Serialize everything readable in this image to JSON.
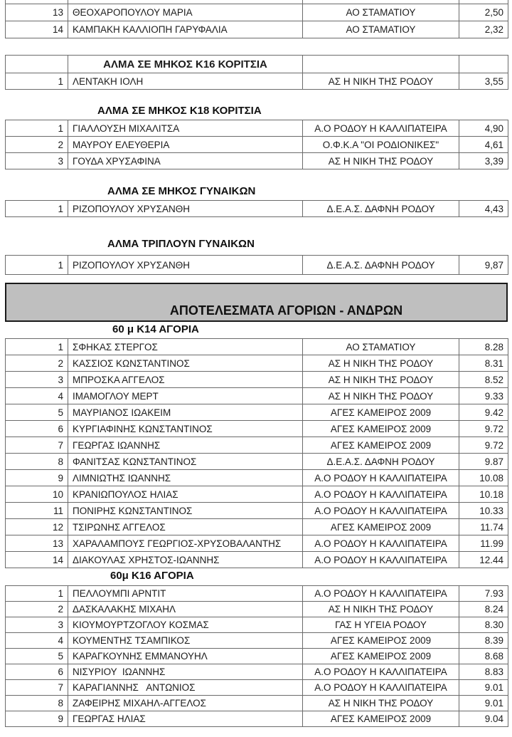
{
  "document": {
    "banner_title": "ΑΠΟΤΕΛΕΣΜΑΤΑ ΑΓΟΡΙΩΝ - ΑΝΔΡΩΝ"
  },
  "colors": {
    "banner_bg": "#bfbfbf",
    "table_border": "#6b6b6b",
    "text": "#1c1c1c"
  },
  "sections": {
    "girls_partial": {
      "rows": [
        {
          "rank": "13",
          "name": "ΘΕΟΧΑΡΟΠΟΥΛΟΥ ΜΑΡΙΑ",
          "club": "ΑΟ ΣΤΑΜΑΤΙΟΥ",
          "result": "2,50"
        },
        {
          "rank": "14",
          "name": "ΚΑΜΠΑΚΗ ΚΑΛΛΙΟΠΗ ΓΑΡΥΦΑΛΙΑ",
          "club": "ΑΟ ΣΤΑΜΑΤΙΟΥ",
          "result": "2,32"
        }
      ]
    },
    "k16_girls_long_jump": {
      "title": "ΑΛΜΑ ΣΕ ΜΗΚΟΣ Κ16 ΚΟΡΙΤΣΙΑ",
      "rows": [
        {
          "rank": "1",
          "name": "ΛΕΝΤΑΚΗ ΙΟΛΗ",
          "club": "ΑΣ Η ΝΙΚΗ ΤΗΣ ΡΟΔΟΥ",
          "result": "3,55"
        }
      ]
    },
    "k18_girls_long_jump": {
      "title": "ΑΛΜΑ ΣΕ ΜΗΚΟΣ Κ18 ΚΟΡΙΤΣΙΑ",
      "rows": [
        {
          "rank": "1",
          "name": "ΓΙΑΛΛΟΥΣΗ ΜΙΧΑΛΙΤΣΑ",
          "club": "Α.Ο ΡΟΔΟΥ Η ΚΑΛΛΙΠΑΤΕΙΡΑ",
          "result": "4,90"
        },
        {
          "rank": "2",
          "name": "ΜΑΥΡΟΥ ΕΛΕΥΘΕΡΙΑ",
          "club": "Ο.Φ.Κ.Α \"ΟΙ ΡΟΔΙΟΝΙΚΕΣ\"",
          "result": "4,61"
        },
        {
          "rank": "3",
          "name": "ΓΟΥΔΑ ΧΡΥΣΑΦΙΝΑ",
          "club": "ΑΣ Η ΝΙΚΗ ΤΗΣ ΡΟΔΟΥ",
          "result": "3,39"
        }
      ]
    },
    "women_long_jump": {
      "title": "ΑΛΜΑ ΣΕ ΜΗΚΟΣ ΓΥΝΑΙΚΩΝ",
      "rows": [
        {
          "rank": "1",
          "name": "ΡΙΖΟΠΟΥΛΟΥ ΧΡΥΣΑΝΘΗ",
          "club": "Δ.Ε.Α.Σ. ΔΑΦΝΗ ΡΟΔΟΥ",
          "result": "4,43"
        }
      ]
    },
    "women_triple_jump": {
      "title": "ΑΛΜΑ ΤΡΙΠΛΟΥΝ ΓΥΝΑΙΚΩΝ",
      "rows": [
        {
          "rank": "1",
          "name": "ΡΙΖΟΠΟΥΛΟΥ ΧΡΥΣΑΝΘΗ",
          "club": "Δ.Ε.Α.Σ. ΔΑΦΝΗ ΡΟΔΟΥ",
          "result": "9,87"
        }
      ]
    },
    "k14_boys_60m": {
      "title": "60 μ Κ14 ΑΓΟΡΙΑ",
      "rows": [
        {
          "rank": "1",
          "name": "ΣΦΗΚΑΣ ΣΤΕΡΓΟΣ",
          "club": "ΑΟ ΣΤΑΜΑΤΙΟΥ",
          "result": "8.28"
        },
        {
          "rank": "2",
          "name": "ΚΑΣΣΙΟΣ ΚΩΝΣΤΑΝΤΙΝΟΣ",
          "club": "ΑΣ Η ΝΙΚΗ ΤΗΣ ΡΟΔΟΥ",
          "result": "8.31"
        },
        {
          "rank": "3",
          "name": "ΜΠΡΟΣΚΑ ΑΓΓΕΛΟΣ",
          "club": "ΑΣ Η ΝΙΚΗ ΤΗΣ ΡΟΔΟΥ",
          "result": "8.52"
        },
        {
          "rank": "4",
          "name": "ΙΜΑΜΟΓΛΟΥ ΜΕΡΤ",
          "club": "ΑΣ Η ΝΙΚΗ ΤΗΣ ΡΟΔΟΥ",
          "result": "9.33"
        },
        {
          "rank": "5",
          "name": "ΜΑΥΡΙΑΝΟΣ ΙΩΑΚΕΙΜ",
          "club": "ΑΓΕΣ ΚΑΜΕΙΡΟΣ 2009",
          "result": "9.42"
        },
        {
          "rank": "6",
          "name": "ΚΥΡΓΙΑΦΙΝΗΣ ΚΩΝΣΤΑΝΤΙΝΟΣ",
          "club": "ΑΓΕΣ ΚΑΜΕΙΡΟΣ 2009",
          "result": "9.72"
        },
        {
          "rank": "7",
          "name": "ΓΕΩΡΓΑΣ ΙΩΑΝΝΗΣ",
          "club": "ΑΓΕΣ ΚΑΜΕΙΡΟΣ 2009",
          "result": "9.72"
        },
        {
          "rank": "8",
          "name": "ΦΑΝΙΤΣΑΣ ΚΩΝΣΤΑΝΤΙΝΟΣ",
          "club": "Δ.Ε.Α.Σ. ΔΑΦΝΗ ΡΟΔΟΥ",
          "result": "9.87"
        },
        {
          "rank": "9",
          "name": "ΛΙΜΝΙΩΤΗΣ ΙΩΑΝΝΗΣ",
          "club": "Α.Ο ΡΟΔΟΥ Η ΚΑΛΛΙΠΑΤΕΙΡΑ",
          "result": "10.08"
        },
        {
          "rank": "10",
          "name": "ΚΡΑΝΙΩΠΟΥΛΟΣ ΗΛΙΑΣ",
          "club": "Α.Ο ΡΟΔΟΥ Η ΚΑΛΛΙΠΑΤΕΙΡΑ",
          "result": "10.18"
        },
        {
          "rank": "11",
          "name": "ΠΟΝΙΡΗΣ ΚΩΝΣΤΑΝΤΙΝΟΣ",
          "club": "Α.Ο ΡΟΔΟΥ Η ΚΑΛΛΙΠΑΤΕΙΡΑ",
          "result": "10.33"
        },
        {
          "rank": "12",
          "name": "ΤΣΙΡΩΝΗΣ ΑΓΓΕΛΟΣ",
          "club": "ΑΓΕΣ ΚΑΜΕΙΡΟΣ 2009",
          "result": "11.74"
        },
        {
          "rank": "13",
          "name": "ΧΑΡΑΛΑΜΠΟΥΣ ΓΕΩΡΓΙΟΣ-ΧΡΥΣΟΒΑΛΑΝΤΗΣ",
          "club": "Α.Ο ΡΟΔΟΥ Η ΚΑΛΛΙΠΑΤΕΙΡΑ",
          "result": "11.99"
        },
        {
          "rank": "14",
          "name": "ΔΙΑΚΟΥΛΑΣ ΧΡΗΣΤΟΣ-ΙΩΑΝΝΗΣ",
          "club": "Α.Ο ΡΟΔΟΥ Η ΚΑΛΛΙΠΑΤΕΙΡΑ",
          "result": "12.44"
        }
      ]
    },
    "k16_boys_60m": {
      "title": "60μ Κ16 ΑΓΟΡΙΑ",
      "rows": [
        {
          "rank": "1",
          "name": "ΠΕΛΛΟΥΜΠΙ ΑΡΝΤΙΤ",
          "club": "Α.Ο ΡΟΔΟΥ Η ΚΑΛΛΙΠΑΤΕΙΡΑ",
          "result": "7.93"
        },
        {
          "rank": "2",
          "name": "ΔΑΣΚΑΛΑΚΗΣ ΜΙΧΑΗΛ",
          "club": "ΑΣ Η ΝΙΚΗ ΤΗΣ ΡΟΔΟΥ",
          "result": "8.24"
        },
        {
          "rank": "3",
          "name": "ΚΙΟΥΜΟΥΡΤΖΟΓΛΟΥ ΚΟΣΜΑΣ",
          "club": "ΓΑΣ Η ΥΓΕΙΑ ΡΟΔΟΥ",
          "result": "8.30"
        },
        {
          "rank": "4",
          "name": "ΚΟΥΜΕΝΤΗΣ ΤΣΑΜΠΙΚΟΣ",
          "club": "ΑΓΕΣ ΚΑΜΕΙΡΟΣ 2009",
          "result": "8.39"
        },
        {
          "rank": "5",
          "name": "ΚΑΡΑΓΚΟΥΝΗΣ ΕΜΜΑΝΟΥΗΛ",
          "club": "ΑΓΕΣ ΚΑΜΕΙΡΟΣ 2009",
          "result": "8.68"
        },
        {
          "rank": "6",
          "name": "ΝΙΣΥΡΙΟΥ  ΙΩΑΝΝΗΣ",
          "club": "Α.Ο ΡΟΔΟΥ Η ΚΑΛΛΙΠΑΤΕΙΡΑ",
          "result": "8.83"
        },
        {
          "rank": "7",
          "name": "ΚΑΡΑΓΙΑΝΝΗΣ   ΑΝΤΩΝΙΟΣ",
          "club": "Α.Ο ΡΟΔΟΥ Η ΚΑΛΛΙΠΑΤΕΙΡΑ",
          "result": "9.01"
        },
        {
          "rank": "8",
          "name": "ΖΑΦΕΙΡΗΣ ΜΙΧΑΗΛ-ΑΓΓΕΛΟΣ",
          "club": "ΑΣ Η ΝΙΚΗ ΤΗΣ ΡΟΔΟΥ",
          "result": "9.01"
        },
        {
          "rank": "9",
          "name": "ΓΕΩΡΓΑΣ ΗΛΙΑΣ",
          "club": "ΑΓΕΣ ΚΑΜΕΙΡΟΣ 2009",
          "result": "9.04"
        }
      ]
    }
  }
}
